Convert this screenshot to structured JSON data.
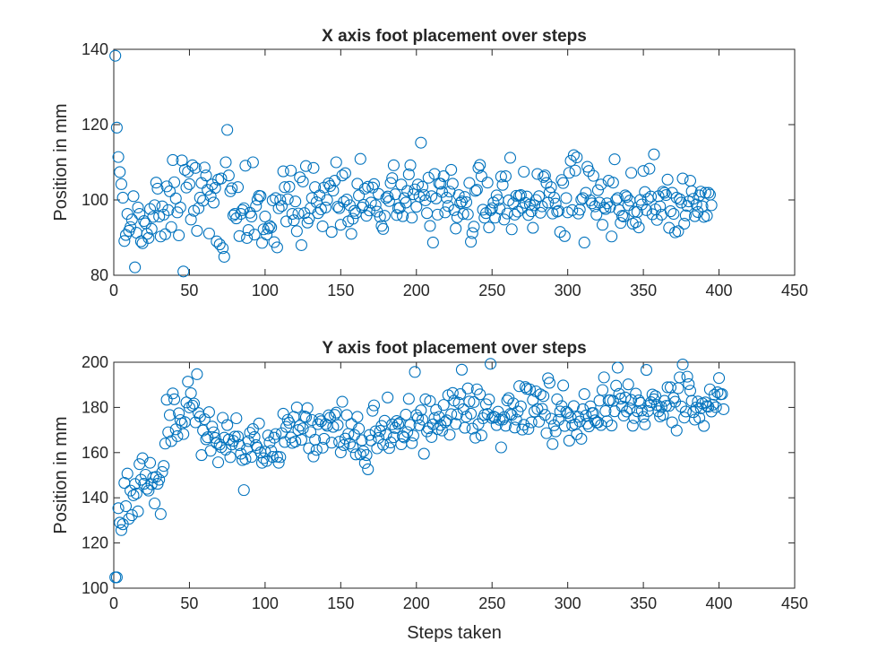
{
  "colors": {
    "marker": "#0072bd",
    "axis": "#262626"
  },
  "chart_data": [
    {
      "type": "scatter",
      "title": "X axis foot placement over steps",
      "xlabel": "",
      "ylabel": "Position in mm",
      "xlim": [
        0,
        450
      ],
      "ylim": [
        80,
        140
      ],
      "xticks": [
        "0",
        "50",
        "100",
        "150",
        "200",
        "250",
        "300",
        "350",
        "400",
        "450"
      ],
      "yticks": [
        "80",
        "100",
        "120",
        "140"
      ],
      "grid": false,
      "marker": "circle",
      "y": [
        138.3,
        119.2,
        111.4,
        107.4,
        104.2,
        100.6,
        89.1,
        90.7,
        96.3,
        91.8,
        92.8,
        94.8,
        101.0,
        82.1,
        91.3,
        98.0,
        96.3,
        89.0,
        88.5,
        94.4,
        93.8,
        91.0,
        89.9,
        97.6,
        92.3,
        95.5,
        98.6,
        104.6,
        103.0,
        95.6,
        90.3,
        98.3,
        96.1,
        90.9,
        103.6,
        97.3,
        102.3,
        92.8,
        110.6,
        104.7,
        100.4,
        96.7,
        90.6,
        98.0,
        110.5,
        81.0,
        108.0,
        103.3,
        107.5,
        104.2,
        94.8,
        109.2,
        97.1,
        108.5,
        91.8,
        97.8,
        100.6,
        104.5,
        99.8,
        108.6,
        106.5,
        102.7,
        91.1,
        101.0,
        104.1,
        99.3,
        103.2,
        89.0,
        105.4,
        88.2,
        105.7,
        87.2,
        84.9,
        110.0,
        118.6,
        106.5,
        102.3,
        103.1,
        95.9,
        96.3,
        95.1,
        103.4,
        90.4,
        96.3,
        97.3,
        97.8,
        109.1,
        89.9,
        92.0,
        96.6,
        95.6,
        110.0,
        90.8,
        98.4,
        100.1,
        101.1,
        101.0,
        88.6,
        92.2,
        95.6,
        90.8,
        92.4,
        93.1,
        92.7,
        99.9,
        88.8,
        100.5,
        87.4,
        97.8,
        100.0,
        98.4,
        107.6,
        103.4,
        94.3,
        100.2,
        103.5,
        107.8,
        96.3,
        94.6,
        99.6,
        91.7,
        96.4,
        106.0,
        88.0,
        104.9,
        96.5,
        109.0,
        94.0,
        95.1,
        97.8,
        100.5,
        108.5,
        103.4,
        99.4,
        96.5,
        101.2,
        97.5,
        93.0,
        103.3,
        98.0,
        100.0,
        104.4,
        103.7,
        91.5,
        102.5,
        105.1,
        110.0,
        98.2,
        97.8,
        93.4,
        106.5,
        99.5,
        107.1,
        100.1,
        94.3,
        98.6,
        91.0,
        95.0,
        97.1,
        96.5,
        104.3,
        101.2,
        110.9,
        98.0,
        98.7,
        103.0,
        95.8,
        103.5,
        97.2,
        99.3,
        103.3,
        104.2,
        98.6,
        96.9,
        101.6,
        95.5,
        93.1,
        92.3,
        95.8,
        100.5,
        100.9,
        99.7,
        104.5,
        105.8,
        109.2,
        101.5,
        96.0,
        97.8,
        97.9,
        104.1,
        95.7,
        100.5,
        99.3,
        102.4,
        106.8,
        109.2,
        95.3,
        101.5,
        102.8,
        98.2,
        104.1,
        100.9,
        115.2,
        103.5,
        101.3,
        99.9,
        96.5,
        105.9,
        93.1,
        101.0,
        88.7,
        106.9,
        100.4,
        96.1,
        104.4,
        104.3,
        102.1,
        106.3,
        96.7,
        100.6,
        98.4,
        102.2,
        108.0,
        104.3,
        97.3,
        92.4,
        95.4,
        101.3,
        99.2,
        99.6,
        96.3,
        100.8,
        99.4,
        96.2,
        104.5,
        88.9,
        91.2,
        92.9,
        102.4,
        102.7,
        108.5,
        109.3,
        106.3,
        97.4,
        95.3,
        96.5,
        104.6,
        92.7,
        97.3,
        97.8,
        99.3,
        95.3,
        101.2,
        100.0,
        97.7,
        106.2,
        104.0,
        94.8,
        106.3,
        96.4,
        99.9,
        111.2,
        92.2,
        99.1,
        96.1,
        101.1,
        96.9,
        101.1,
        101.3,
        97.9,
        107.5,
        99.2,
        100.9,
        96.0,
        98.8,
        97.0,
        92.6,
        98.6,
        100.0,
        106.9,
        101.0,
        96.6,
        98.3,
        106.1,
        106.5,
        104.5,
        99.3,
        102.0,
        103.4,
        96.4,
        100.6,
        99.0,
        96.9,
        97.1,
        91.5,
        105.3,
        104.5,
        90.4,
        100.5,
        96.7,
        107.2,
        110.4,
        97.3,
        111.9,
        107.8,
        111.3,
        96.4,
        97.4,
        100.1,
        100.5,
        88.7,
        101.9,
        108.8,
        107.7,
        99.9,
        99.1,
        106.4,
        98.3,
        96.1,
        102.6,
        99.3,
        104.1,
        93.4,
        98.0,
        97.6,
        99.1,
        105.1,
        98.1,
        90.3,
        104.6,
        110.8,
        100.0,
        100.5,
        97.3,
        93.9,
        95.8,
        95.6,
        101.2,
        100.8,
        98.6,
        99.8,
        107.2,
        93.7,
        96.9,
        94.1,
        96.8,
        92.7,
        100.0,
        98.8,
        107.7,
        102.1,
        97.3,
        100.3,
        108.3,
        100.9,
        96.2,
        112.1,
        97.5,
        94.7,
        101.0,
        98.3,
        96.1,
        102.2,
        101.9,
        101.3,
        105.4,
        92.6,
        97.0,
        101.9,
        96.3,
        91.4,
        100.6,
        91.7,
        100.2,
        99.3,
        105.7,
        93.7,
        95.9,
        98.4,
        99.6,
        105.1,
        102.3,
        100.3,
        95.7,
        98.8,
        96.8,
        101.2,
        102.2,
        98.3,
        95.5,
        101.9,
        95.8,
        101.9,
        101.4,
        98.6
      ]
    },
    {
      "type": "scatter",
      "title": "Y axis foot placement over steps",
      "xlabel": "Steps taken",
      "ylabel": "Position in mm",
      "xlim": [
        0,
        450
      ],
      "ylim": [
        100,
        200
      ],
      "xticks": [
        "0",
        "50",
        "100",
        "150",
        "200",
        "250",
        "300",
        "350",
        "400",
        "450"
      ],
      "yticks": [
        "100",
        "120",
        "140",
        "160",
        "180",
        "200"
      ],
      "grid": false,
      "marker": "circle",
      "y": [
        104.8,
        104.8,
        135.4,
        129.0,
        125.7,
        128.3,
        146.6,
        136.3,
        150.7,
        130.7,
        143.2,
        132.3,
        141.1,
        146.1,
        141.9,
        134.0,
        154.9,
        148.0,
        157.5,
        146.2,
        150.2,
        144.0,
        143.2,
        155.5,
        146.0,
        149.0,
        137.5,
        149.3,
        146.2,
        148.0,
        132.8,
        151.4,
        154.1,
        164.0,
        183.4,
        169.0,
        176.6,
        165.1,
        186.2,
        183.6,
        170.3,
        167.3,
        177.4,
        174.4,
        172.9,
        168.2,
        173.5,
        182.2,
        191.4,
        180.0,
        186.3,
        180.8,
        181.7,
        173.4,
        194.7,
        177.5,
        175.9,
        158.9,
        169.8,
        174.8,
        165.9,
        166.8,
        177.9,
        160.8,
        171.5,
        169.0,
        166.5,
        164.2,
        155.7,
        163.6,
        162.4,
        175.4,
        166.6,
        161.3,
        172.2,
        165.8,
        158.0,
        163.6,
        165.2,
        167.1,
        175.2,
        167.1,
        163.3,
        159.5,
        156.7,
        143.4,
        157.2,
        161.6,
        165.1,
        168.8,
        158.1,
        170.4,
        166.9,
        163.3,
        162.1,
        172.9,
        160.1,
        155.5,
        157.5,
        160.4,
        156.3,
        167.6,
        164.5,
        160.8,
        158.1,
        166.6,
        168.2,
        158.2,
        155.5,
        158.0,
        168.6,
        177.2,
        164.7,
        171.4,
        174.5,
        173.2,
        166.7,
        164.3,
        175.8,
        164.9,
        180.0,
        170.0,
        171.9,
        165.7,
        170.7,
        176.0,
        175.7,
        179.7,
        161.9,
        169.1,
        174.4,
        158.3,
        165.7,
        161.2,
        172.6,
        174.8,
        173.9,
        162.2,
        166.1,
        172.6,
        171.9,
        176.5,
        175.5,
        164.4,
        171.4,
        176.7,
        177.7,
        172.2,
        164.8,
        160.1,
        182.5,
        163.3,
        166.2,
        176.6,
        168.3,
        164.0,
        172.7,
        162.4,
        167.8,
        159.2,
        175.8,
        170.6,
        159.2,
        165.5,
        160.6,
        155.4,
        158.9,
        152.6,
        167.8,
        165.4,
        178.5,
        180.9,
        169.4,
        161.9,
        166.5,
        169.6,
        171.8,
        163.5,
        174.1,
        168.0,
        184.4,
        162.0,
        164.5,
        172.5,
        166.8,
        170.9,
        174.0,
        172.6,
        173.2,
        163.7,
        167.2,
        166.7,
        176.8,
        169.1,
        183.8,
        172.3,
        164.2,
        167.5,
        195.7,
        176.6,
        175.3,
        172.1,
        178.7,
        174.6,
        159.5,
        183.6,
        169.4,
        170.8,
        182.8,
        166.9,
        172.5,
        175.3,
        178.9,
        170.4,
        175.8,
        172.2,
        169.8,
        181.1,
        173.5,
        174.3,
        185.4,
        167.9,
        177.0,
        186.4,
        183.0,
        172.7,
        176.9,
        182.0,
        185.9,
        196.7,
        179.2,
        171.0,
        175.9,
        188.4,
        182.6,
        177.2,
        170.6,
        182.4,
        166.6,
        188.0,
        172.6,
        185.8,
        167.6,
        175.2,
        176.7,
        181.4,
        177.1,
        183.5,
        199.3,
        175.3,
        175.9,
        175.6,
        172.2,
        178.1,
        174.5,
        162.3,
        174.6,
        175.7,
        171.9,
        183.1,
        184.1,
        177.1,
        176.7,
        181.8,
        171.1,
        174.6,
        178.2,
        189.4,
        180.5,
        170.2,
        172.3,
        189.0,
        188.2,
        170.5,
        188.0,
        173.4,
        183.3,
        178.2,
        187.1,
        179.3,
        173.7,
        185.8,
        179.4,
        185.0,
        176.7,
        168.6,
        192.9,
        190.9,
        175.0,
        163.8,
        172.1,
        169.4,
        183.6,
        174.5,
        178.2,
        180.6,
        189.7,
        171.8,
        178.1,
        177.5,
        165.3,
        175.5,
        172.0,
        180.6,
        172.5,
        168.1,
        175.8,
        173.8,
        166.1,
        179.2,
        185.9,
        176.4,
        172.8,
        171.6,
        180.5,
        177.5,
        177.5,
        174.3,
        173.3,
        173.4,
        183.0,
        172.2,
        187.7,
        193.3,
        178.4,
        173.9,
        183.1,
        183.2,
        172.0,
        182.9,
        178.3,
        189.6,
        197.6,
        186.0,
        183.9,
        180.4,
        176.4,
        184.4,
        178.2,
        190.2,
        179.6,
        183.3,
        171.9,
        175.3,
        186.1,
        178.3,
        183.1,
        182.0,
        178.6,
        175.8,
        172.5,
        196.6,
        178.4,
        180.8,
        182.3,
        185.7,
        183.6,
        185.0,
        181.1,
        178.3,
        176.0,
        180.1,
        176.7,
        182.9,
        180.7,
        188.9,
        180.7,
        188.9,
        173.4,
        184.2,
        182.5,
        169.8,
        188.5,
        193.3,
        180.4,
        199.0,
        175.5,
        178.2,
        193.6,
        190.3,
        187.4,
        182.9,
        177.9,
        174.6,
        180.0,
        182.6,
        175.4,
        179.6,
        181.8,
        171.8,
        182.2,
        180.6,
        180.3,
        188.0,
        178.2,
        181.2,
        185.6,
        180.1,
        186.7,
        193.0,
        185.8,
        185.9,
        179.2
      ]
    }
  ]
}
